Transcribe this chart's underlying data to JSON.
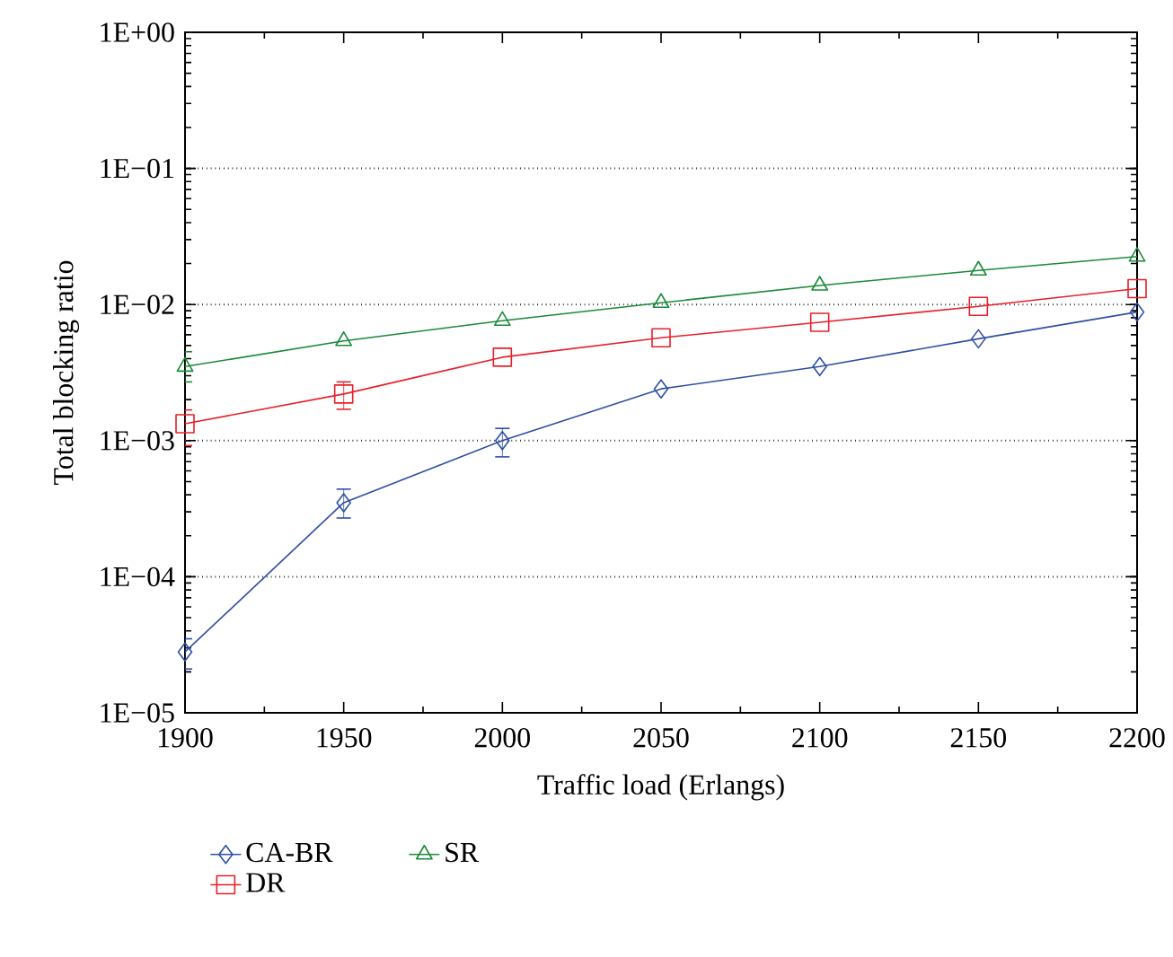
{
  "chart_data": {
    "type": "line",
    "xlabel": "Traffic load (Erlangs)",
    "ylabel": "Total blocking ratio",
    "x": [
      1900,
      1950,
      2000,
      2050,
      2100,
      2150,
      2200
    ],
    "series": [
      {
        "name": "CA-BR",
        "color": "#2e4fa3",
        "marker": "diamond",
        "values": [
          2.8e-05,
          0.00035,
          0.001,
          0.0024,
          0.0035,
          0.0056,
          0.0088
        ],
        "errors": [
          [
            2.1e-05,
            3.5e-05
          ],
          [
            0.00027,
            0.00044
          ],
          [
            0.00076,
            0.00123
          ],
          null,
          null,
          null,
          null
        ]
      },
      {
        "name": "DR",
        "color": "#e8202a",
        "marker": "square",
        "values": [
          0.00133,
          0.0022,
          0.0041,
          0.0057,
          0.0074,
          0.0097,
          0.0131
        ],
        "errors": [
          [
            0.00092,
            0.00168
          ],
          [
            0.0017,
            0.0027
          ],
          null,
          null,
          null,
          null,
          null
        ]
      },
      {
        "name": "SR",
        "color": "#1a8a3a",
        "marker": "triangle",
        "values": [
          0.0035,
          0.0054,
          0.0076,
          0.0103,
          0.0138,
          0.0178,
          0.0225
        ],
        "errors": [
          [
            0.0027,
            0.0045
          ],
          null,
          null,
          null,
          null,
          null,
          null
        ]
      }
    ],
    "log": true,
    "xlim": [
      1900,
      2200
    ],
    "xticks": [
      1900,
      1950,
      2000,
      2050,
      2100,
      2150,
      2200
    ],
    "ylim": [
      1e-05,
      1
    ],
    "yticks": [
      {
        "value": 1e-05,
        "label": "1E−05"
      },
      {
        "value": 0.0001,
        "label": "1E−04"
      },
      {
        "value": 0.001,
        "label": "1E−03"
      },
      {
        "value": 0.01,
        "label": "1E−02"
      },
      {
        "value": 0.1,
        "label": "1E−01"
      },
      {
        "value": 1,
        "label": "1E+00"
      }
    ],
    "grid": "y",
    "legend": "bottom",
    "line_style": "solid"
  }
}
